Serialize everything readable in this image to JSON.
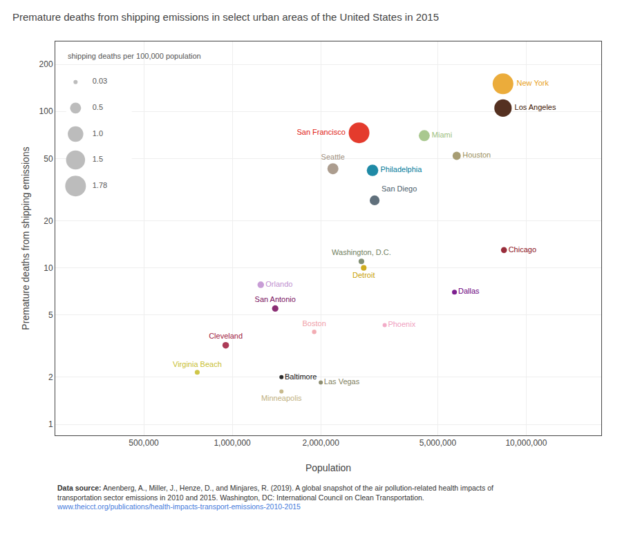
{
  "chart_data": {
    "type": "scatter",
    "title": "Premature deaths from shipping emissions in select urban areas of the United States in 2015",
    "xlabel": "Population",
    "ylabel": "Premature deaths from shipping emissions",
    "labels": [
      "New York",
      "Los Angeles",
      "San Francisco",
      "Miami",
      "Houston",
      "Seattle",
      "Philadelphia",
      "San Diego",
      "Washington, D.C.",
      "Chicago",
      "Detroit",
      "Dallas",
      "Orlando",
      "San Antonio",
      "Boston",
      "Phoenix",
      "Cleveland",
      "Virginia Beach",
      "Baltimore",
      "Las Vegas",
      "Minneapolis"
    ],
    "x": [
      8336817,
      8336817,
      2700000,
      4500000,
      5800000,
      2200000,
      3000000,
      3050000,
      2750000,
      8400000,
      2800000,
      5700000,
      1250000,
      1400000,
      1900000,
      3300000,
      950000,
      760000,
      1470000,
      2000000,
      1470000
    ],
    "values": [
      150,
      105,
      73,
      70,
      52,
      43,
      42,
      27,
      11,
      13,
      10,
      7,
      7.8,
      5.5,
      3.9,
      4.3,
      3.2,
      2.15,
      2.0,
      1.85,
      1.62
    ],
    "sizes": [
      1.78,
      1.25,
      1.78,
      0.5,
      0.28,
      0.5,
      0.55,
      0.4,
      0.13,
      0.15,
      0.13,
      0.1,
      0.18,
      0.17,
      0.08,
      0.05,
      0.18,
      0.1,
      0.05,
      0.05,
      0.03
    ],
    "colors": [
      "#E8A020",
      "#3D1502",
      "#E02010",
      "#9DC080",
      "#9B9060",
      "#A09080",
      "#007A9A",
      "#4A5C6A",
      "#708060",
      "#8B1020",
      "#C8A000",
      "#6B0080",
      "#C090D0",
      "#7A1060",
      "#F0A0A8",
      "#F0A0C0",
      "#A02040",
      "#C8BE30",
      "#101010",
      "#808060",
      "#C0B080"
    ],
    "log": true,
    "xlim": [
      250000,
      18000000
    ],
    "ylim": [
      0.85,
      280
    ],
    "xticks": [
      {
        "value": 500000,
        "label": "500,000"
      },
      {
        "value": 1000000,
        "label": "1,000,000"
      },
      {
        "value": 2000000,
        "label": "2,000,000"
      },
      {
        "value": 5000000,
        "label": "5,000,000"
      },
      {
        "value": 10000000,
        "label": "10,000,000"
      }
    ],
    "yticks": [
      1,
      2,
      5,
      10,
      20,
      50,
      100,
      200
    ],
    "grid": true,
    "size_legend": {
      "title": "shipping deaths per 100,000 population",
      "values": [
        0.03,
        0.5,
        {
          "value": 1.0,
          "label": "1.0"
        },
        1.5,
        1.78
      ],
      "color": "#b0b0b0"
    },
    "source": {
      "label": "Data source:",
      "lines": [
        "Anenberg, A., Miller, J., Henze, D., and Minjares, R. (2019). A global snapshot of the air pollution-related health impacts of",
        "transportation sector emissions in 2010 and 2015. Washington, DC: International Council on Clean Transportation."
      ],
      "url": "www.theicct.org/publications/health-impacts-transport-emissions-2010-2015"
    }
  }
}
